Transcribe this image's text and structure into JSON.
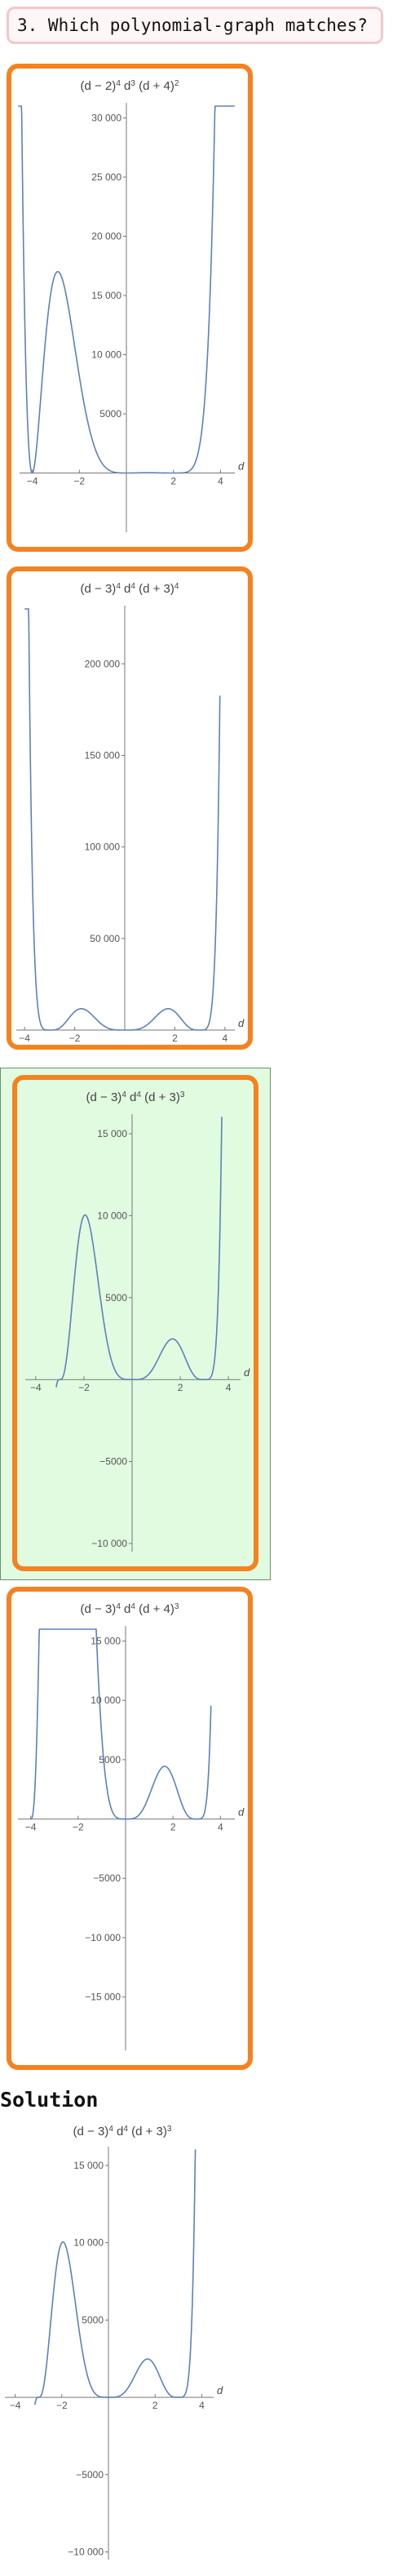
{
  "question": {
    "text": "3. Which polynomial-graph matches?"
  },
  "solution_heading": "Solution",
  "chart_data": [
    {
      "id": "opt1",
      "type": "line",
      "title": "(d - 2)^4 d^3 (d + 4)^2",
      "title_parts": [
        "(d − 2)",
        "4",
        " d",
        "3",
        " (d + 4)",
        "2"
      ],
      "xlabel": "d",
      "xlim": [
        -4.4,
        4.4
      ],
      "ylim": [
        -5000,
        31000
      ],
      "x_ticks": [
        -4,
        -2,
        2,
        4
      ],
      "x_tick_labels": [
        "−4",
        "−2",
        "2",
        "4"
      ],
      "y_ticks": [
        5000,
        10000,
        15000,
        20000,
        25000,
        30000
      ],
      "y_tick_labels": [
        "5000",
        "10 000",
        "15 000",
        "20 000",
        "25 000",
        "30 000"
      ],
      "series": [
        {
          "fn": "abs_poly1",
          "color": "#5e81b5",
          "x_range": [
            -4.6,
            4.6
          ]
        }
      ]
    },
    {
      "id": "opt2",
      "type": "line",
      "title": "(d - 3)^4 d^4 (d + 3)^4",
      "title_parts": [
        "(d − 3)",
        "4",
        " d",
        "4",
        " (d + 3)",
        "4"
      ],
      "xlabel": "d",
      "xlim": [
        -4.2,
        4.2
      ],
      "ylim": [
        0,
        230000
      ],
      "x_ticks": [
        -4,
        -2,
        2,
        4
      ],
      "x_tick_labels": [
        "−4",
        "−2",
        "2",
        "4"
      ],
      "y_ticks": [
        50000,
        100000,
        150000,
        200000
      ],
      "y_tick_labels": [
        "50 000",
        "100 000",
        "150 000",
        "200 000"
      ],
      "series": [
        {
          "fn": "poly2",
          "color": "#5e81b5",
          "x_range": [
            -4.0,
            3.8
          ]
        }
      ]
    },
    {
      "id": "opt3",
      "type": "line",
      "title": "(d - 3)^4 d^4 (d + 3)^3",
      "title_parts": [
        "(d − 3)",
        "4",
        " d",
        "4",
        " (d + 3)",
        "3"
      ],
      "xlabel": "d",
      "xlim": [
        -4.3,
        4.3
      ],
      "ylim": [
        -10500,
        16000
      ],
      "x_ticks": [
        -4,
        -2,
        2,
        4
      ],
      "x_tick_labels": [
        "−4",
        "−2",
        "2",
        "4"
      ],
      "y_ticks": [
        -10000,
        -5000,
        5000,
        10000,
        15000
      ],
      "y_tick_labels": [
        "−10 000",
        "−5000",
        "5000",
        "10 000",
        "15 000"
      ],
      "series": [
        {
          "fn": "poly3",
          "color": "#5e81b5",
          "x_range": [
            -3.15,
            3.75
          ]
        }
      ]
    },
    {
      "id": "opt4",
      "type": "line",
      "title": "(d - 3)^4 d^4 (d + 4)^3",
      "title_parts": [
        "(d − 3)",
        "4",
        " d",
        "4",
        " (d + 4)",
        "3"
      ],
      "xlabel": "d",
      "xlim": [
        -4.4,
        4.4
      ],
      "ylim": [
        -19500,
        16000
      ],
      "x_ticks": [
        -4,
        -2,
        2,
        4
      ],
      "x_tick_labels": [
        "−4",
        "−2",
        "2",
        "4"
      ],
      "y_ticks": [
        -15000,
        -10000,
        -5000,
        5000,
        10000,
        15000
      ],
      "y_tick_labels": [
        "−15 000",
        "−10 000",
        "−5000",
        "5000",
        "10 000",
        "15 000"
      ],
      "series": [
        {
          "fn": "poly4",
          "color": "#5e81b5",
          "x_range": [
            -4.0,
            3.6
          ]
        }
      ]
    },
    {
      "id": "solution",
      "type": "line",
      "title": "(d - 3)^4 d^4 (d + 3)^3",
      "title_parts": [
        "(d − 3)",
        "4",
        " d",
        "4",
        " (d + 3)",
        "3"
      ],
      "xlabel": "d",
      "xlim": [
        -4.3,
        4.3
      ],
      "ylim": [
        -10500,
        16000
      ],
      "x_ticks": [
        -4,
        -2,
        2,
        4
      ],
      "x_tick_labels": [
        "−4",
        "−2",
        "2",
        "4"
      ],
      "y_ticks": [
        -10000,
        -5000,
        5000,
        10000,
        15000
      ],
      "y_tick_labels": [
        "−10 000",
        "−5000",
        "5000",
        "10 000",
        "15 000"
      ],
      "series": [
        {
          "fn": "poly3",
          "color": "#5e81b5",
          "x_range": [
            -3.15,
            3.75
          ]
        }
      ]
    }
  ]
}
